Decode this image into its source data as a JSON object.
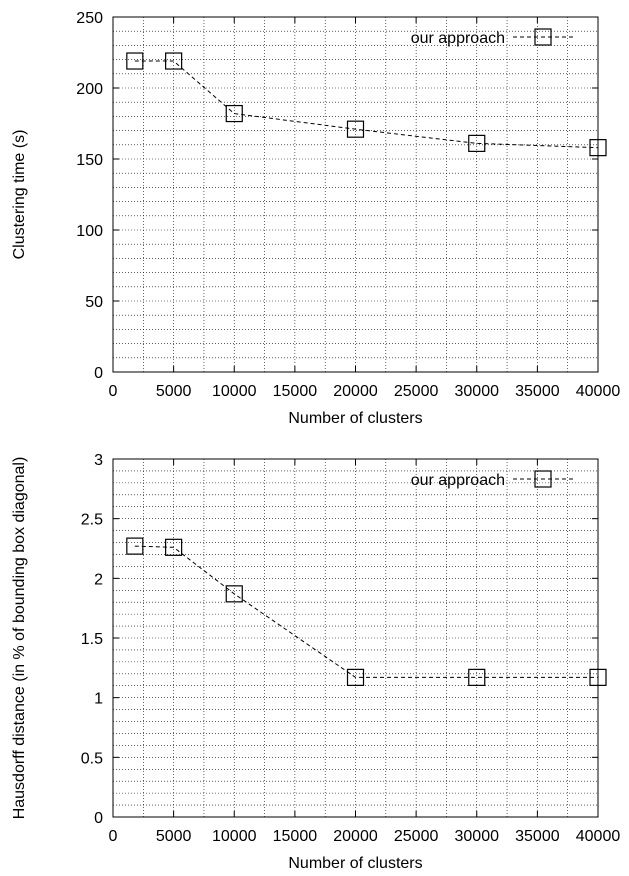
{
  "chart_data": [
    {
      "type": "line",
      "xlabel": "Number of clusters",
      "ylabel": "Clustering time (s)",
      "xlim": [
        0,
        40000
      ],
      "ylim": [
        0,
        250
      ],
      "xticks": [
        0,
        5000,
        10000,
        15000,
        20000,
        25000,
        30000,
        35000,
        40000
      ],
      "yticks": [
        0,
        50,
        100,
        150,
        200,
        250
      ],
      "grid": true,
      "legend_position": "top-right",
      "series": [
        {
          "name": "our approach",
          "marker": "square",
          "line_style": "dashed",
          "x": [
            1800,
            5000,
            10000,
            20000,
            30000,
            40000
          ],
          "y": [
            219,
            219,
            182,
            171,
            161,
            158
          ]
        }
      ]
    },
    {
      "type": "line",
      "xlabel": "Number of clusters",
      "ylabel": "Hausdorff distance (in % of bounding box diagonal)",
      "xlim": [
        0,
        40000
      ],
      "ylim": [
        0,
        3
      ],
      "xticks": [
        0,
        5000,
        10000,
        15000,
        20000,
        25000,
        30000,
        35000,
        40000
      ],
      "yticks": [
        0,
        0.5,
        1,
        1.5,
        2,
        2.5,
        3
      ],
      "grid": true,
      "legend_position": "top-right",
      "series": [
        {
          "name": "our approach",
          "marker": "square",
          "line_style": "dashed",
          "x": [
            1800,
            5000,
            10000,
            20000,
            30000,
            40000
          ],
          "y": [
            2.27,
            2.26,
            1.87,
            1.17,
            1.17,
            1.17
          ]
        }
      ]
    }
  ]
}
